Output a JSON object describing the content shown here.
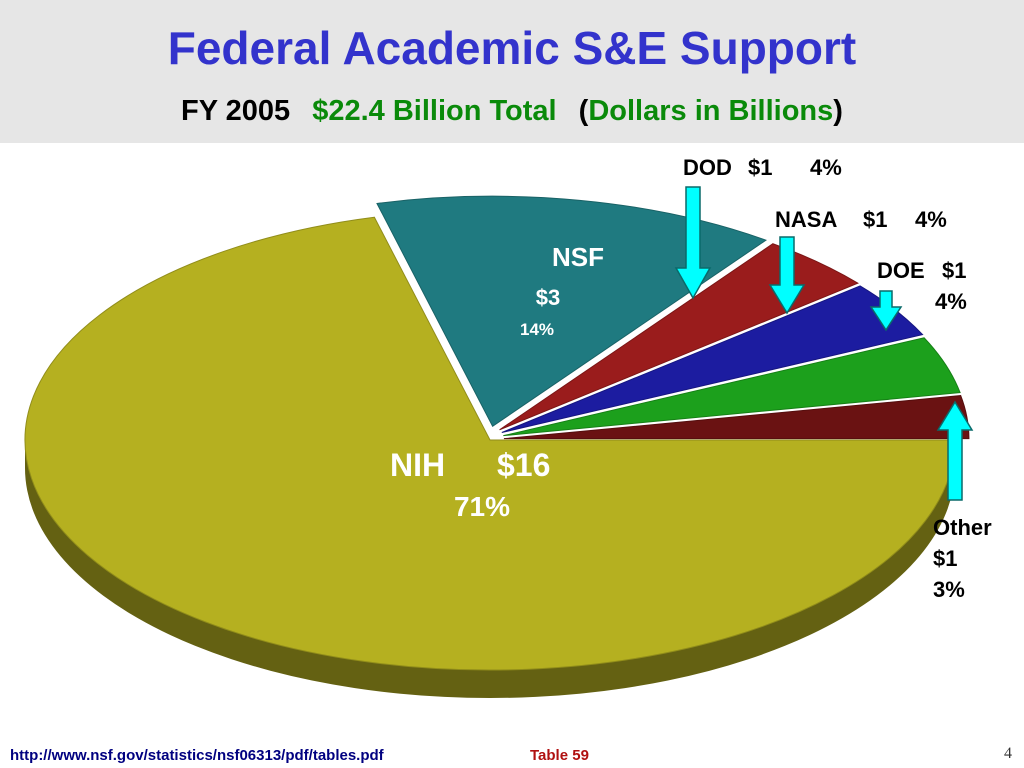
{
  "chart_data": {
    "type": "pie",
    "title": "Federal Academic S&E Support",
    "subtitle": {
      "year": "FY 2005",
      "total": "$22.4 Billion Total",
      "open": "(",
      "units": "Dollars in Billions",
      "close": ")"
    },
    "categories": [
      "NIH",
      "NSF",
      "DOD",
      "NASA",
      "DOE",
      "Other"
    ],
    "values": [
      71,
      14,
      4,
      4,
      4,
      3
    ],
    "value_labels": [
      "71%",
      "14%",
      "4%",
      "4%",
      "4%",
      "3%"
    ],
    "amount_labels": [
      "$16",
      "$3",
      "$1",
      "$1",
      "$1",
      "$1"
    ],
    "colors": [
      "#b5b020",
      "#1f7a80",
      "#9a1c1c",
      "#1c1ca0",
      "#1ca01c",
      "#6a1212"
    ],
    "source": "http://www.nsf.gov/statistics/nsf06313/pdf/tables.pdf",
    "table_note": "Table 59",
    "page_number": "4"
  }
}
